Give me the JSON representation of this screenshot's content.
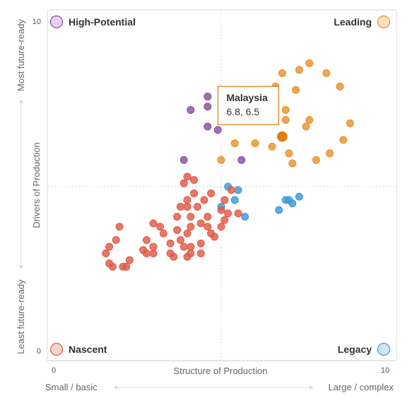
{
  "chart_data": {
    "type": "scatter",
    "xlabel": "Structure of Production",
    "ylabel": "Drivers of Production",
    "x_low_label": "Small / basic",
    "x_high_label": "Large / complex",
    "y_low_label": "Least future-ready",
    "y_high_label": "Most future-ready",
    "xlim": [
      0,
      10
    ],
    "ylim": [
      0,
      10
    ],
    "x_ticks": [
      "0",
      "10"
    ],
    "y_ticks": [
      "10",
      "0"
    ],
    "midlines": {
      "x": 5.0,
      "y": 5.0
    },
    "quadrants": {
      "top_left": {
        "label": "High-Potential",
        "color": "#8a4fa0",
        "fill": "#e3d2ea"
      },
      "top_right": {
        "label": "Leading",
        "color": "#e8922e",
        "fill": "#fbe0c4"
      },
      "bottom_left": {
        "label": "Nascent",
        "color": "#e05a47",
        "fill": "#f8d3cc"
      },
      "bottom_right": {
        "label": "Legacy",
        "color": "#3a9ad9",
        "fill": "#cfe5f5"
      }
    },
    "highlight": {
      "name": "Malaysia",
      "value_text": "6.8, 6.5",
      "x": 6.8,
      "y": 6.5,
      "color": "#e07d10"
    },
    "series": [
      {
        "name": "High-Potential",
        "color": "#8a4fa0",
        "points": [
          [
            4.6,
            7.7
          ],
          [
            4.1,
            7.3
          ],
          [
            4.6,
            7.4
          ],
          [
            4.6,
            6.8
          ],
          [
            4.9,
            6.7
          ],
          [
            3.9,
            5.8
          ],
          [
            5.6,
            5.8
          ]
        ]
      },
      {
        "name": "Leading",
        "color": "#e8922e",
        "points": [
          [
            7.6,
            8.7
          ],
          [
            8.1,
            8.4
          ],
          [
            8.5,
            8.0
          ],
          [
            7.3,
            8.5
          ],
          [
            6.8,
            8.4
          ],
          [
            7.2,
            7.9
          ],
          [
            6.9,
            7.3
          ],
          [
            6.9,
            7.0
          ],
          [
            7.5,
            6.8
          ],
          [
            7.6,
            7.0
          ],
          [
            8.8,
            6.9
          ],
          [
            8.6,
            6.4
          ],
          [
            8.2,
            6.0
          ],
          [
            7.8,
            5.8
          ],
          [
            7.0,
            6.0
          ],
          [
            7.1,
            5.7
          ],
          [
            6.5,
            6.2
          ],
          [
            6.0,
            6.3
          ],
          [
            5.4,
            6.3
          ],
          [
            5.0,
            5.8
          ],
          [
            5.9,
            7.9
          ],
          [
            6.1,
            7.8
          ],
          [
            6.6,
            8.0
          ]
        ]
      },
      {
        "name": "Legacy",
        "color": "#3a9ad9",
        "points": [
          [
            5.2,
            5.0
          ],
          [
            5.5,
            4.9
          ],
          [
            5.4,
            4.6
          ],
          [
            5.0,
            4.4
          ],
          [
            5.7,
            4.1
          ],
          [
            7.3,
            4.7
          ],
          [
            7.1,
            4.5
          ],
          [
            6.7,
            4.3
          ],
          [
            6.9,
            4.6
          ],
          [
            7.0,
            4.6
          ]
        ]
      },
      {
        "name": "Nascent",
        "color": "#e05a47",
        "points": [
          [
            2.0,
            3.8
          ],
          [
            1.9,
            3.4
          ],
          [
            1.7,
            3.2
          ],
          [
            1.6,
            3.0
          ],
          [
            1.7,
            2.7
          ],
          [
            1.8,
            2.6
          ],
          [
            2.1,
            2.6
          ],
          [
            2.2,
            2.6
          ],
          [
            2.3,
            2.8
          ],
          [
            2.8,
            3.4
          ],
          [
            2.7,
            3.1
          ],
          [
            2.8,
            3.0
          ],
          [
            3.0,
            3.2
          ],
          [
            3.0,
            3.0
          ],
          [
            3.3,
            3.6
          ],
          [
            3.5,
            3.3
          ],
          [
            3.2,
            3.8
          ],
          [
            3.0,
            3.9
          ],
          [
            3.5,
            3.0
          ],
          [
            3.6,
            2.9
          ],
          [
            3.8,
            3.4
          ],
          [
            3.7,
            3.7
          ],
          [
            3.7,
            4.1
          ],
          [
            3.8,
            4.4
          ],
          [
            4.0,
            4.6
          ],
          [
            4.0,
            4.4
          ],
          [
            4.3,
            4.4
          ],
          [
            4.1,
            4.1
          ],
          [
            4.1,
            3.8
          ],
          [
            4.0,
            3.6
          ],
          [
            4.1,
            3.0
          ],
          [
            4.0,
            2.9
          ],
          [
            3.9,
            3.2
          ],
          [
            4.4,
            3.9
          ],
          [
            4.6,
            3.8
          ],
          [
            4.4,
            3.3
          ],
          [
            4.7,
            3.6
          ],
          [
            4.8,
            3.5
          ],
          [
            5.0,
            3.8
          ],
          [
            5.1,
            4.0
          ],
          [
            5.0,
            4.3
          ],
          [
            5.2,
            4.2
          ],
          [
            5.5,
            4.2
          ],
          [
            5.1,
            4.6
          ],
          [
            5.3,
            4.9
          ],
          [
            4.7,
            4.8
          ],
          [
            4.5,
            4.6
          ],
          [
            4.2,
            4.8
          ],
          [
            3.9,
            5.1
          ],
          [
            4.0,
            5.3
          ],
          [
            4.2,
            5.2
          ],
          [
            4.6,
            4.1
          ],
          [
            4.4,
            3.0
          ],
          [
            4.1,
            3.2
          ]
        ]
      }
    ]
  }
}
